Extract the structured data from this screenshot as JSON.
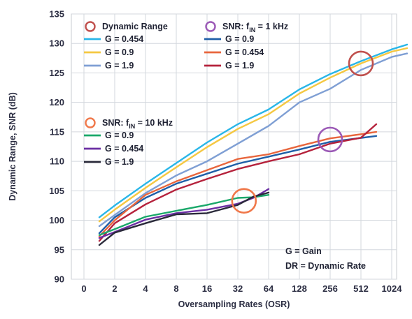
{
  "chart_data": {
    "type": "line",
    "xlabel": "Oversampling Rates (OSR)",
    "ylabel": "Dynamic Range, SNR (dB)",
    "ylim": [
      90,
      135
    ],
    "y_ticks": [
      90,
      95,
      100,
      105,
      110,
      115,
      120,
      125,
      130,
      135
    ],
    "x_ticks": [
      "0",
      "2",
      "4",
      "8",
      "16",
      "32",
      "64",
      "128",
      "256",
      "512",
      "1024"
    ],
    "grid": true,
    "groups": [
      {
        "title": "Dynamic Range",
        "marker_color": "#c0504d"
      },
      {
        "title_prefix": "SNR: f",
        "title_sub": "IN",
        "title_suffix": " = 1 kHz",
        "marker_color": "#9b59b6"
      },
      {
        "title_prefix": "SNR: f",
        "title_sub": "IN",
        "title_suffix": " = 10 kHz",
        "marker_color": "#f0784a"
      }
    ],
    "series": [
      {
        "name": "G = 0.454",
        "group": 0,
        "color": "#29b6e8",
        "x": [
          0.5,
          1,
          2,
          3,
          4,
          5,
          6,
          7,
          8,
          9,
          10,
          10.5
        ],
        "y": [
          100.5,
          102.5,
          106.2,
          109.7,
          113.2,
          116.3,
          118.8,
          122.2,
          124.8,
          127.0,
          129.0,
          129.8
        ]
      },
      {
        "name": "G = 0.9",
        "group": 0,
        "color": "#f5c842",
        "x": [
          0.5,
          1,
          2,
          3,
          4,
          5,
          6,
          7,
          8,
          9,
          10,
          10.5
        ],
        "y": [
          99.8,
          101.8,
          105.5,
          109.0,
          112.4,
          115.5,
          118.0,
          121.5,
          124.2,
          126.6,
          128.6,
          129.2
        ]
      },
      {
        "name": "G = 1.9",
        "group": 0,
        "color": "#7f9fd4",
        "x": [
          0.5,
          1,
          2,
          3,
          4,
          5,
          6,
          7,
          8,
          9,
          10,
          10.5
        ],
        "y": [
          99.0,
          100.9,
          104.6,
          107.6,
          110.0,
          113.0,
          116.0,
          120.0,
          122.3,
          125.5,
          127.7,
          128.3
        ]
      },
      {
        "name": "G = 0.9",
        "group": 1,
        "color": "#1f5fa8",
        "x": [
          0.5,
          1,
          2,
          3,
          4,
          5,
          6,
          7,
          8,
          9.5
        ],
        "y": [
          97.8,
          100.5,
          103.8,
          106.2,
          107.9,
          109.6,
          110.8,
          112.0,
          113.3,
          114.3
        ]
      },
      {
        "name": "G = 0.454",
        "group": 1,
        "color": "#e8663d",
        "x": [
          0.5,
          1,
          2,
          3,
          4,
          5,
          6,
          7,
          8,
          9,
          9.5
        ],
        "y": [
          97.3,
          100.0,
          104.3,
          106.6,
          108.5,
          110.4,
          111.2,
          112.6,
          113.9,
          114.6,
          115.0
        ]
      },
      {
        "name": "G = 1.9",
        "group": 1,
        "color": "#b5223c",
        "x": [
          0.5,
          1,
          2,
          3,
          4,
          5,
          6,
          7,
          8,
          9,
          9.5
        ],
        "y": [
          96.5,
          99.5,
          102.7,
          105.2,
          107.0,
          108.7,
          110.0,
          111.2,
          113.0,
          114.0,
          116.3
        ]
      },
      {
        "name": "G = 0.9",
        "group": 2,
        "color": "#1aa86a",
        "x": [
          0.5,
          1,
          2,
          3,
          4,
          5,
          5.5,
          6
        ],
        "y": [
          97.5,
          98.5,
          100.6,
          101.6,
          102.6,
          103.8,
          103.9,
          104.3
        ]
      },
      {
        "name": "G = 0.454",
        "group": 2,
        "color": "#6b2fa3",
        "x": [
          0.5,
          1,
          2,
          3,
          4,
          5,
          5.5,
          6
        ],
        "y": [
          97.0,
          98.0,
          100.1,
          101.2,
          101.8,
          102.8,
          103.8,
          105.3
        ]
      },
      {
        "name": "G = 1.9",
        "group": 2,
        "color": "#2a2a3a",
        "x": [
          0.5,
          1,
          2,
          3,
          4,
          5,
          5.5,
          6
        ],
        "y": [
          95.8,
          97.9,
          99.5,
          101.0,
          101.2,
          102.6,
          104.0,
          104.7
        ]
      }
    ],
    "circles": [
      {
        "label": "Dynamic Range",
        "x": 9.0,
        "y": 126.6,
        "color": "#c0504d"
      },
      {
        "label": "SNR: f_IN = 1 kHz",
        "x": 8.0,
        "y": 113.7,
        "color": "#9b59b6"
      },
      {
        "label": "SNR: f_IN = 10 kHz",
        "x": 5.2,
        "y": 103.3,
        "color": "#f0784a"
      }
    ],
    "annotations": [
      "G = Gain",
      "DR = Dynamic Rate"
    ]
  }
}
